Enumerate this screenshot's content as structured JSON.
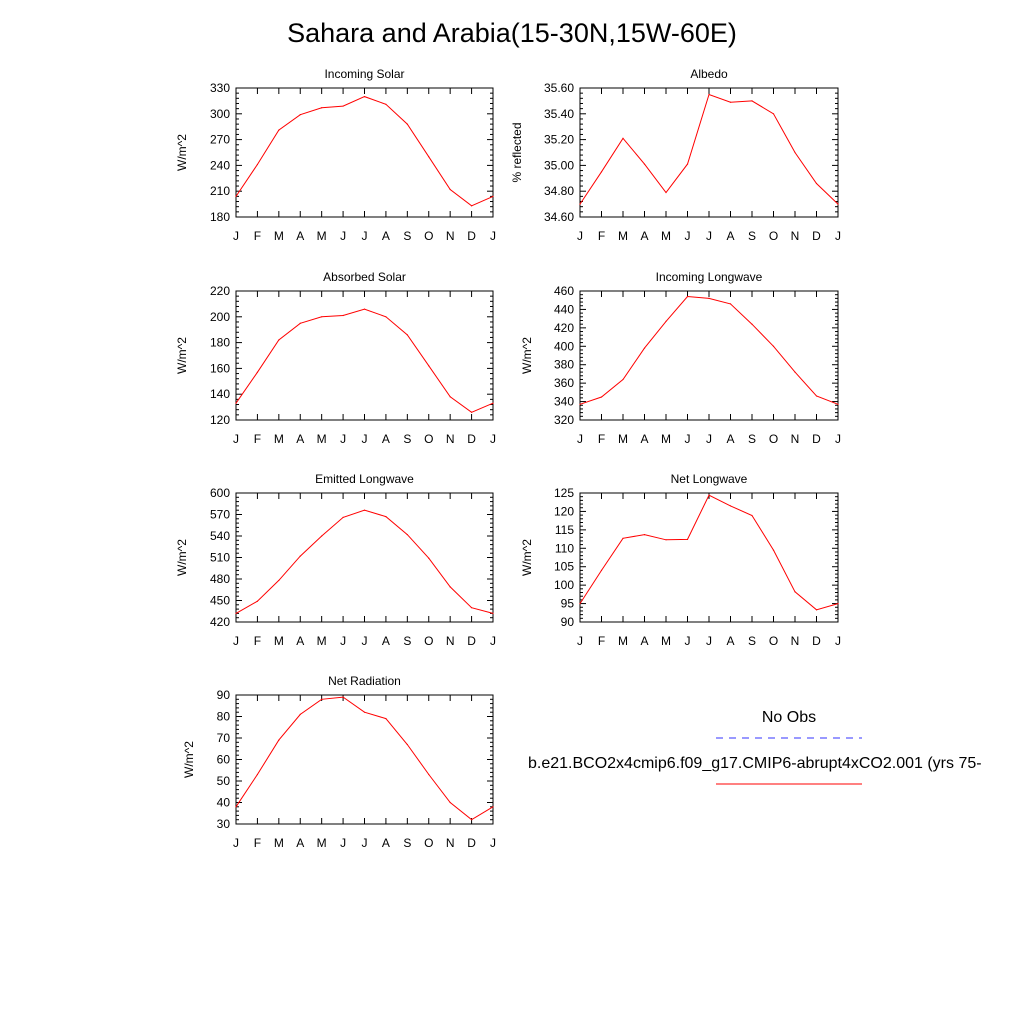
{
  "figure_title": "Sahara and Arabia(15-30N,15W-60E)",
  "chart_data": [
    {
      "type": "line",
      "title": "Incoming Solar",
      "ylabel": "W/m^2",
      "categories": [
        "J",
        "F",
        "M",
        "A",
        "M",
        "J",
        "J",
        "A",
        "S",
        "O",
        "N",
        "D",
        "J"
      ],
      "ylim": [
        180,
        330
      ],
      "yticks": [
        "180",
        "210",
        "240",
        "270",
        "300",
        "330"
      ],
      "series": [
        {
          "color": "#ff0000",
          "values": [
            204,
            241,
            281,
            299,
            307,
            309,
            320,
            311,
            288,
            250,
            212,
            193,
            204
          ]
        }
      ]
    },
    {
      "type": "line",
      "title": "Albedo",
      "ylabel": "% reflected",
      "categories": [
        "J",
        "F",
        "M",
        "A",
        "M",
        "J",
        "J",
        "A",
        "S",
        "O",
        "N",
        "D",
        "J"
      ],
      "ylim": [
        34.6,
        35.6
      ],
      "yticks": [
        "34.60",
        "34.80",
        "35.00",
        "35.20",
        "35.40",
        "35.60"
      ],
      "series": [
        {
          "color": "#ff0000",
          "values": [
            34.7,
            34.95,
            35.21,
            35.01,
            34.79,
            35.01,
            35.55,
            35.49,
            35.5,
            35.4,
            35.1,
            34.86,
            34.7
          ]
        }
      ]
    },
    {
      "type": "line",
      "title": "Absorbed Solar",
      "ylabel": "W/m^2",
      "categories": [
        "J",
        "F",
        "M",
        "A",
        "M",
        "J",
        "J",
        "A",
        "S",
        "O",
        "N",
        "D",
        "J"
      ],
      "ylim": [
        120,
        220
      ],
      "yticks": [
        "120",
        "140",
        "160",
        "180",
        "200",
        "220"
      ],
      "series": [
        {
          "color": "#ff0000",
          "values": [
            133,
            157,
            182,
            195,
            200,
            201,
            206,
            200,
            186,
            162,
            138,
            126,
            133
          ]
        }
      ]
    },
    {
      "type": "line",
      "title": "Incoming Longwave",
      "ylabel": "W/m^2",
      "categories": [
        "J",
        "F",
        "M",
        "A",
        "M",
        "J",
        "J",
        "A",
        "S",
        "O",
        "N",
        "D",
        "J"
      ],
      "ylim": [
        320,
        460
      ],
      "yticks": [
        "320",
        "340",
        "360",
        "380",
        "400",
        "420",
        "440",
        "460"
      ],
      "series": [
        {
          "color": "#ff0000",
          "values": [
            337,
            345,
            364,
            398,
            427,
            454,
            452,
            446,
            424,
            400,
            372,
            346,
            337
          ]
        }
      ]
    },
    {
      "type": "line",
      "title": "Emitted Longwave",
      "ylabel": "W/m^2",
      "categories": [
        "J",
        "F",
        "M",
        "A",
        "M",
        "J",
        "J",
        "A",
        "S",
        "O",
        "N",
        "D",
        "J"
      ],
      "ylim": [
        420,
        600
      ],
      "yticks": [
        "420",
        "450",
        "480",
        "510",
        "540",
        "570",
        "600"
      ],
      "series": [
        {
          "color": "#ff0000",
          "values": [
            432,
            449,
            478,
            512,
            540,
            566,
            576,
            567,
            542,
            509,
            469,
            440,
            432
          ]
        }
      ]
    },
    {
      "type": "line",
      "title": "Net Longwave",
      "ylabel": "W/m^2",
      "categories": [
        "J",
        "F",
        "M",
        "A",
        "M",
        "J",
        "J",
        "A",
        "S",
        "O",
        "N",
        "D",
        "J"
      ],
      "ylim": [
        90,
        125
      ],
      "yticks": [
        "90",
        "95",
        "100",
        "105",
        "110",
        "115",
        "120",
        "125"
      ],
      "series": [
        {
          "color": "#ff0000",
          "values": [
            95,
            104,
            112.7,
            113.7,
            112.3,
            112.4,
            124.4,
            121.5,
            118.9,
            109.5,
            98.2,
            93.3,
            95
          ]
        }
      ]
    },
    {
      "type": "line",
      "title": "Net Radiation",
      "ylabel": "W/m^2",
      "categories": [
        "J",
        "F",
        "M",
        "A",
        "M",
        "J",
        "J",
        "A",
        "S",
        "O",
        "N",
        "D",
        "J"
      ],
      "ylim": [
        30,
        90
      ],
      "yticks": [
        "30",
        "40",
        "50",
        "60",
        "70",
        "80",
        "90"
      ],
      "series": [
        {
          "color": "#ff0000",
          "values": [
            38,
            53,
            69,
            81,
            88,
            89,
            82,
            79,
            67,
            53,
            40,
            32,
            38
          ]
        }
      ]
    }
  ],
  "legend": {
    "heading": "No Obs",
    "obs_color": "#3333ff",
    "model_color": "#ff0000",
    "model_label": "b.e21.BCO2x4cmip6.f09_g17.CMIP6-abrupt4xCO2.001 (yrs 75-"
  }
}
